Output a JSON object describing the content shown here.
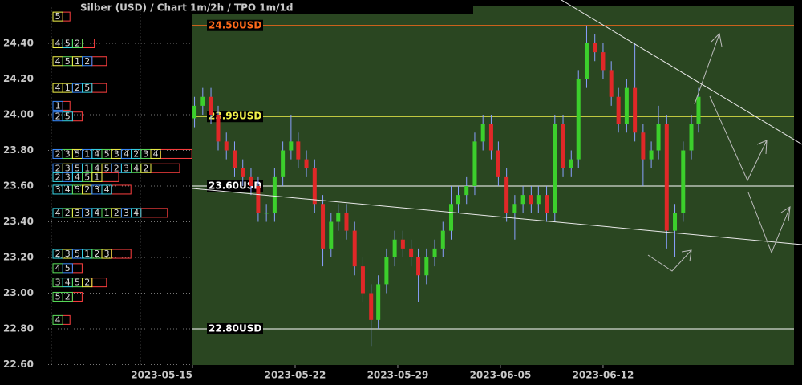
{
  "chart_data": {
    "type": "candlestick",
    "title": "Silber (USD) /  Chart 1m/2h / TPO 1m/1d",
    "xlim": [
      0,
      5.86
    ],
    "xticks": [
      {
        "value": 0,
        "label": "2023-05-15"
      },
      {
        "value": 1,
        "label": "2023-05-22"
      },
      {
        "value": 2,
        "label": "2023-05-29"
      },
      {
        "value": 3,
        "label": "2023-06-05"
      },
      {
        "value": 4,
        "label": "2023-06-12"
      }
    ],
    "ylim": [
      22.6,
      24.6
    ],
    "yticks": [
      {
        "value": 22.6,
        "label": "22.60"
      },
      {
        "value": 22.8,
        "label": "22.80"
      },
      {
        "value": 23,
        "label": "23.00"
      },
      {
        "value": 23.2,
        "label": "23.20"
      },
      {
        "value": 23.4,
        "label": "23.40"
      },
      {
        "value": 23.6,
        "label": "23.60"
      },
      {
        "value": 23.8,
        "label": "23.80"
      },
      {
        "value": 24,
        "label": "24.00"
      },
      {
        "value": 24.2,
        "label": "24.20"
      },
      {
        "value": 24.4,
        "label": "24.40"
      }
    ],
    "grid": true,
    "up_color": "#3ccf2c",
    "down_color": "#e02828",
    "x": [
      0.02,
      0.1,
      0.18,
      0.25,
      0.33,
      0.41,
      0.49,
      0.57,
      0.64,
      0.72,
      0.8,
      0.88,
      0.96,
      1.03,
      1.11,
      1.19,
      1.27,
      1.35,
      1.42,
      1.5,
      1.58,
      1.66,
      1.74,
      1.81,
      1.89,
      1.97,
      2.05,
      2.13,
      2.2,
      2.28,
      2.36,
      2.44,
      2.52,
      2.59,
      2.67,
      2.75,
      2.83,
      2.91,
      2.98,
      3.06,
      3.14,
      3.22,
      3.3,
      3.37,
      3.45,
      3.53,
      3.61,
      3.69,
      3.76,
      3.84,
      3.92,
      4.0,
      4.08,
      4.15,
      4.23,
      4.31,
      4.39,
      4.47,
      4.54,
      4.62,
      4.7,
      4.78,
      4.86,
      4.93
    ],
    "open": [
      23.98,
      24.05,
      24.1,
      24.0,
      23.85,
      23.8,
      23.7,
      23.65,
      23.6,
      23.45,
      23.45,
      23.65,
      23.8,
      23.85,
      23.75,
      23.7,
      23.5,
      23.25,
      23.4,
      23.45,
      23.35,
      23.15,
      23.0,
      22.85,
      23.05,
      23.2,
      23.3,
      23.25,
      23.2,
      23.1,
      23.2,
      23.25,
      23.35,
      23.5,
      23.55,
      23.6,
      23.85,
      23.95,
      23.8,
      23.65,
      23.45,
      23.5,
      23.55,
      23.5,
      23.55,
      23.45,
      23.95,
      23.7,
      23.75,
      24.2,
      24.4,
      24.35,
      24.25,
      24.1,
      23.95,
      24.15,
      23.9,
      23.75,
      23.8,
      23.95,
      23.35,
      23.45,
      23.8,
      23.95
    ],
    "high": [
      24.1,
      24.15,
      24.15,
      24.05,
      23.9,
      23.85,
      23.75,
      23.7,
      23.65,
      23.5,
      23.7,
      23.85,
      24.0,
      23.9,
      23.8,
      23.75,
      23.55,
      23.45,
      23.5,
      23.5,
      23.4,
      23.2,
      23.05,
      23.1,
      23.25,
      23.35,
      23.35,
      23.3,
      23.25,
      23.25,
      23.3,
      23.4,
      23.6,
      23.6,
      23.65,
      23.9,
      24.0,
      24.0,
      23.85,
      23.7,
      23.55,
      23.6,
      23.6,
      23.6,
      23.6,
      24.0,
      24.0,
      23.8,
      24.25,
      24.5,
      24.45,
      24.4,
      24.3,
      24.15,
      24.2,
      24.4,
      23.95,
      23.85,
      24.05,
      24.0,
      23.5,
      23.85,
      24.0,
      24.15
    ],
    "low": [
      23.93,
      24.0,
      23.95,
      23.8,
      23.75,
      23.65,
      23.6,
      23.55,
      23.4,
      23.4,
      23.4,
      23.6,
      23.75,
      23.7,
      23.65,
      23.45,
      23.15,
      23.2,
      23.35,
      23.3,
      23.1,
      22.95,
      22.7,
      22.8,
      23.0,
      23.15,
      23.2,
      23.15,
      22.95,
      23.05,
      23.15,
      23.2,
      23.3,
      23.45,
      23.5,
      23.55,
      23.8,
      23.75,
      23.6,
      23.4,
      23.3,
      23.45,
      23.45,
      23.45,
      23.4,
      23.4,
      23.65,
      23.65,
      23.7,
      24.15,
      24.3,
      24.2,
      24.05,
      23.9,
      23.9,
      23.85,
      23.6,
      23.7,
      23.75,
      23.25,
      23.2,
      23.4,
      23.75,
      23.9
    ],
    "close": [
      24.05,
      24.1,
      24.0,
      23.85,
      23.8,
      23.7,
      23.65,
      23.6,
      23.45,
      23.45,
      23.65,
      23.8,
      23.85,
      23.75,
      23.7,
      23.5,
      23.25,
      23.4,
      23.45,
      23.35,
      23.15,
      23.0,
      22.85,
      23.05,
      23.2,
      23.3,
      23.25,
      23.2,
      23.1,
      23.2,
      23.25,
      23.35,
      23.5,
      23.55,
      23.6,
      23.85,
      23.95,
      23.8,
      23.65,
      23.45,
      23.5,
      23.55,
      23.5,
      23.55,
      23.45,
      23.95,
      23.7,
      23.75,
      24.2,
      24.4,
      24.35,
      24.25,
      24.1,
      23.95,
      24.15,
      23.9,
      23.75,
      23.8,
      23.95,
      23.35,
      23.45,
      23.8,
      23.95,
      24.1
    ],
    "levels": [
      {
        "value": 24.5,
        "label": "24.50USD",
        "color": "#ff6a1a"
      },
      {
        "value": 23.99,
        "label": "23.99USD",
        "color": "#f2f24a"
      },
      {
        "value": 23.6,
        "label": "23.60USD",
        "color": "#ffffff"
      },
      {
        "value": 22.8,
        "label": "22.80USD",
        "color": "#ffffff"
      }
    ],
    "tpo": {
      "colors": [
        "#f2f24a",
        "#3a8cff",
        "#38d8e8",
        "#5be05b"
      ],
      "profile_color": "#ff4040",
      "rows": [
        {
          "price": 24.55,
          "letters": [
            "5"
          ]
        },
        {
          "price": 24.4,
          "letters": [
            "4",
            "5",
            "2"
          ]
        },
        {
          "price": 24.3,
          "letters": [
            "4",
            "5",
            "1",
            "2"
          ]
        },
        {
          "price": 24.15,
          "letters": [
            "4",
            "1",
            "2",
            "5"
          ]
        },
        {
          "price": 24.05,
          "letters": [
            "1"
          ]
        },
        {
          "price": 23.99,
          "letters": [
            "2",
            "5"
          ]
        },
        {
          "price": 23.78,
          "letters": [
            "2",
            "3",
            "5",
            "1",
            "4",
            "5",
            "3",
            "4",
            "2",
            "3",
            "4"
          ]
        },
        {
          "price": 23.7,
          "letters": [
            "2",
            "3",
            "5",
            "1",
            "4",
            "5",
            "2",
            "3",
            "4",
            "2"
          ]
        },
        {
          "price": 23.65,
          "letters": [
            "2",
            "3",
            "4",
            "5",
            "1"
          ]
        },
        {
          "price": 23.58,
          "letters": [
            "3",
            "4",
            "5",
            "2",
            "3",
            "4"
          ]
        },
        {
          "price": 23.45,
          "letters": [
            "4",
            "2",
            "3",
            "3",
            "4",
            "1",
            "2",
            "3",
            "4"
          ]
        },
        {
          "price": 23.22,
          "letters": [
            "2",
            "3",
            "5",
            "1",
            "2",
            "3"
          ]
        },
        {
          "price": 23.14,
          "letters": [
            "4",
            "5"
          ]
        },
        {
          "price": 23.06,
          "letters": [
            "3",
            "4",
            "5",
            "2"
          ]
        },
        {
          "price": 22.98,
          "letters": [
            "5",
            "2"
          ]
        },
        {
          "price": 22.85,
          "letters": [
            "4"
          ]
        }
      ]
    }
  }
}
